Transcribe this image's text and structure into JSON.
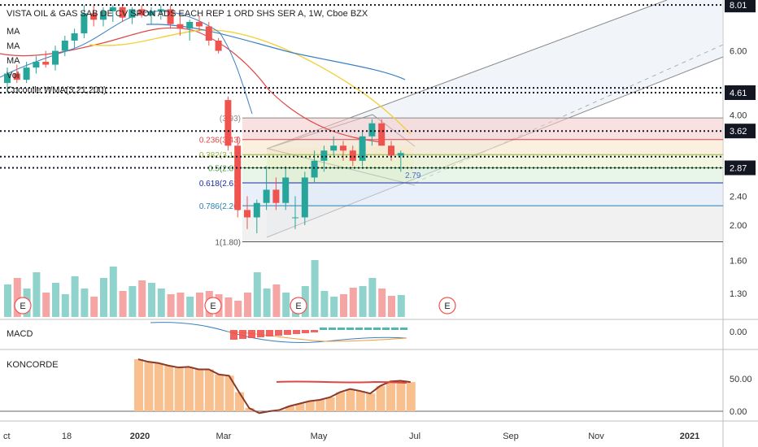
{
  "chart_data": {
    "type": "candlestick",
    "title": "VISTA OIL & GAS SAB DE CV SPON ADS EACH REP 1 ORD SHS SER A, 1W, Cboe BZX",
    "price_scale": "log",
    "ylim": [
      1.15,
      8.1
    ],
    "indicators": [
      "MA",
      "MA",
      "MA",
      "Vol",
      "Cocoulle WMA(3,21,200)"
    ],
    "x_labels": [
      "ct",
      "18",
      "2020",
      "Mar",
      "May",
      "Jul",
      "Sep",
      "Nov",
      "2021"
    ],
    "price_ticks": [
      "8.01",
      "6.00",
      "4.61",
      "4.00",
      "3.62",
      "2.87",
      "2.40",
      "2.00",
      "1.60",
      "1.30"
    ],
    "price_tags": [
      {
        "label": "8.01",
        "value": 8.01,
        "color": "#131722"
      },
      {
        "label": "4.61",
        "value": 4.61,
        "color": "#131722"
      },
      {
        "label": "3.62",
        "value": 3.62,
        "color": "#131722"
      },
      {
        "label": "2.87",
        "value": 2.87,
        "color": "#131722"
      }
    ],
    "dotted_levels": [
      8.01,
      4.75,
      4.61,
      3.62,
      3.08,
      2.87
    ],
    "fibonacci": [
      {
        "label": "(3.93)",
        "value": 3.93,
        "color": "#888888"
      },
      {
        "label": "0.236(3.43)",
        "value": 3.43,
        "color": "#e04646"
      },
      {
        "label": "0.382(3.12)",
        "value": 3.12,
        "color": "#9ab93a"
      },
      {
        "label": "0.5(2.87)",
        "value": 2.87,
        "color": "#43a047"
      },
      {
        "label": "0.618(2.61)",
        "value": 2.61,
        "color": "#1a2aa8"
      },
      {
        "label": "0.786(2.26)",
        "value": 2.26,
        "color": "#2a7fb0"
      },
      {
        "label": "1(1.80)",
        "value": 1.8,
        "color": "#555555"
      }
    ],
    "annotation": {
      "label": "2.79",
      "value": 2.79
    },
    "earnings_markers": [
      "E",
      "E",
      "E",
      "E"
    ],
    "macd": {
      "label": "MACD",
      "ticks": [
        "0.00"
      ]
    },
    "koncorde": {
      "label": "KONCORDE",
      "ticks": [
        "50.00",
        "0.00"
      ],
      "values": [
        82,
        78,
        76,
        72,
        69,
        70,
        66,
        66,
        58,
        56,
        30,
        5,
        -3,
        0,
        2,
        8,
        12,
        16,
        18,
        22,
        30,
        35,
        32,
        28,
        40,
        47,
        48,
        46
      ]
    }
  },
  "colors": {
    "up": "#26a69a",
    "down": "#ef5350",
    "vol_up": "#8fd3cc",
    "vol_down": "#f6a5a5",
    "koncorde_fill": "#f8c08e",
    "koncorde_line": "#8b3a2a"
  }
}
